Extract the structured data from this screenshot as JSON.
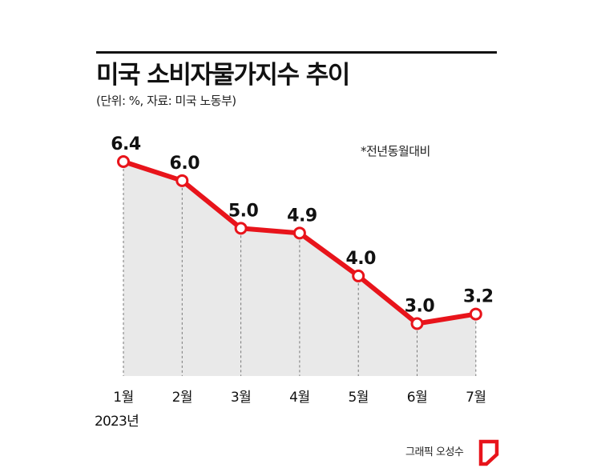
{
  "header": {
    "title": "미국 소비자물가지수 추이",
    "subtitle": "(단위: %, 자료: 미국 노동부)"
  },
  "note": "*전년동월대비",
  "chart_data": {
    "type": "line",
    "categories": [
      "1월",
      "2월",
      "3월",
      "4월",
      "5월",
      "6월",
      "7월"
    ],
    "values": [
      6.4,
      6.0,
      5.0,
      4.9,
      4.0,
      3.0,
      3.2
    ],
    "value_labels": [
      "6.4",
      "6.0",
      "5.0",
      "4.9",
      "4.0",
      "3.0",
      "3.2"
    ],
    "title": "미국 소비자물가지수 추이",
    "ylim": [
      1.9,
      6.4
    ],
    "grid": false,
    "area_fill": true
  },
  "year_label": "2023년",
  "credit": "그래픽 오성수",
  "colors": {
    "line": "#e8141b",
    "marker_fill": "#ffffff",
    "area": "#e9e9e9",
    "guide": "#777777",
    "logo": "#e8141b"
  }
}
